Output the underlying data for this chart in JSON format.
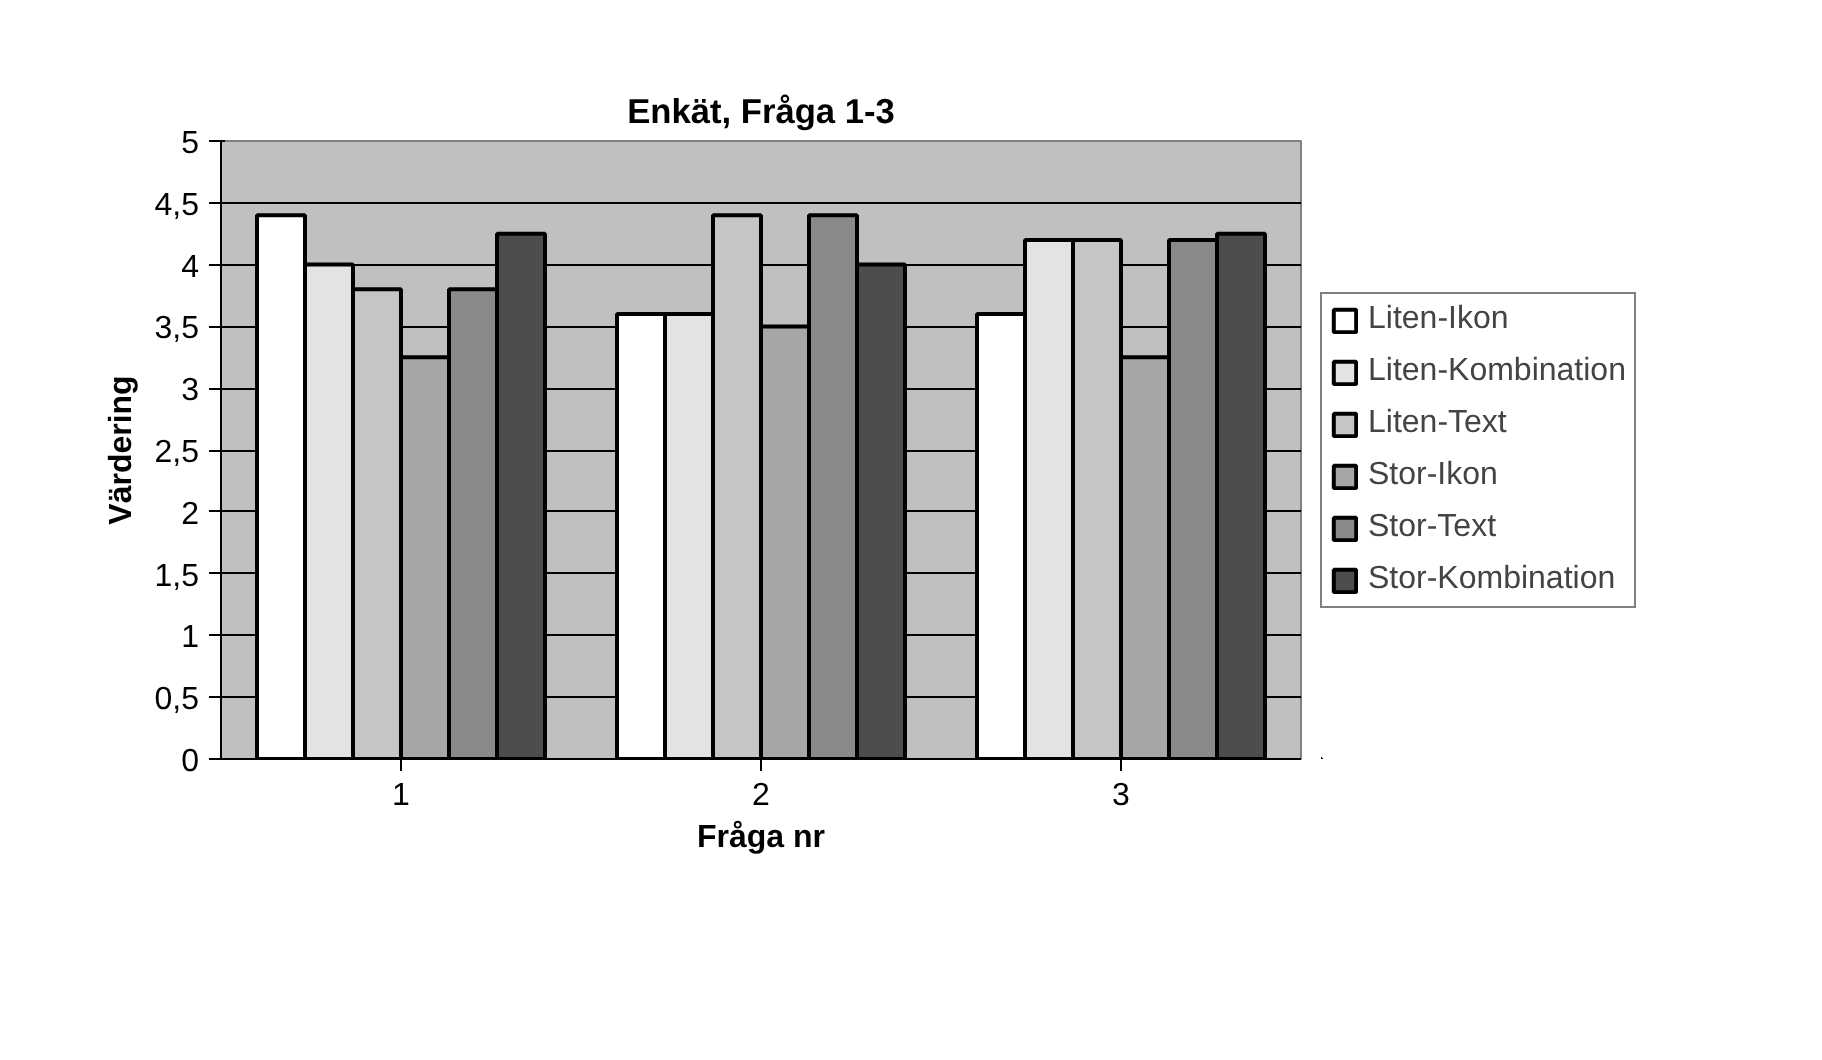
{
  "chart_data": {
    "type": "bar",
    "title": "Enkät, Fråga 1-3",
    "xlabel": "Fråga nr",
    "ylabel": "Värdering",
    "categories": [
      "1",
      "2",
      "3"
    ],
    "series": [
      {
        "name": "Liten-Ikon",
        "color": "#ffffff",
        "values": [
          4.4,
          3.6,
          3.6
        ]
      },
      {
        "name": "Liten-Kombination",
        "color": "#e3e3e3",
        "values": [
          4.0,
          3.6,
          4.2
        ]
      },
      {
        "name": "Liten-Text",
        "color": "#c5c5c5",
        "values": [
          3.8,
          4.4,
          4.2
        ]
      },
      {
        "name": "Stor-Ikon",
        "color": "#a6a6a6",
        "values": [
          3.25,
          3.5,
          3.25
        ]
      },
      {
        "name": "Stor-Text",
        "color": "#8a8a8a",
        "values": [
          3.8,
          4.4,
          4.2
        ]
      },
      {
        "name": "Stor-Kombination",
        "color": "#4d4d4d",
        "values": [
          4.25,
          4.0,
          4.25
        ]
      }
    ],
    "ylim": [
      0,
      5
    ],
    "yticks": [
      0,
      {
        "value": 0.5,
        "label": "0,5"
      },
      1,
      {
        "value": 1.5,
        "label": "1,5"
      },
      2,
      {
        "value": 2.5,
        "label": "2,5"
      },
      3,
      {
        "value": 3.5,
        "label": "3,5"
      },
      4,
      {
        "value": 4.5,
        "label": "4,5"
      },
      5
    ],
    "grid": "y",
    "legend": "right"
  }
}
